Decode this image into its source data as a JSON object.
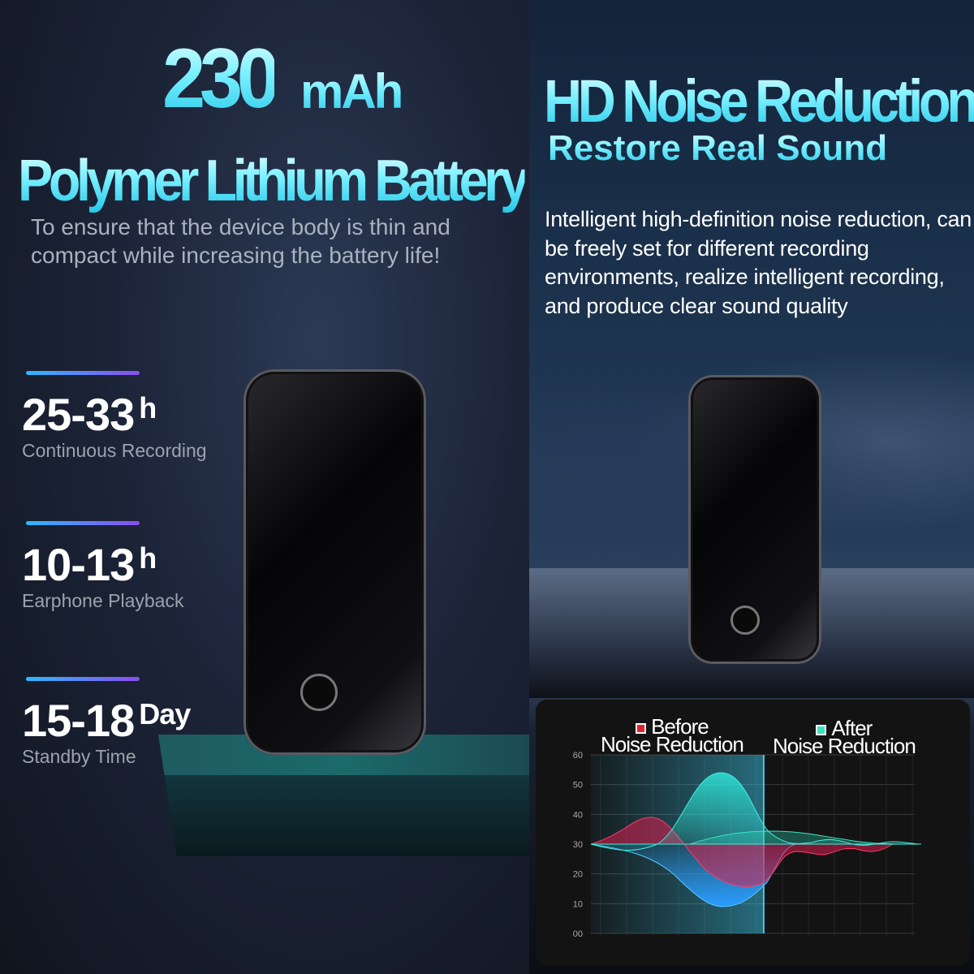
{
  "left": {
    "capacity_value": "230",
    "capacity_unit": "mAh",
    "battery_type": "Polymer Lithium Battery",
    "description": "To ensure that the device body is thin and compact while increasing the battery life!",
    "stats": [
      {
        "value": "25-33",
        "unit": "h",
        "label": "Continuous Recording"
      },
      {
        "value": "10-13",
        "unit": "h",
        "label": "Earphone Playback"
      },
      {
        "value": "15-18",
        "unit": "Day",
        "label": "Standby Time"
      }
    ]
  },
  "right": {
    "title": "HD Noise Reduction",
    "subtitle": "Restore Real Sound",
    "description": "Intelligent high-definition noise reduction, can be freely set for different recording environments, realize intelligent recording, and produce clear sound quality"
  },
  "chart": {
    "legend": [
      {
        "line1": "Before",
        "line2": "Noise Reduction",
        "color": "#e8202c"
      },
      {
        "line1": "After",
        "line2": "Noise Reduction",
        "color": "#3fe0c0"
      }
    ],
    "y_ticks": [
      "60",
      "50",
      "40",
      "30",
      "20",
      "10",
      "00"
    ]
  },
  "colors": {
    "accent": "#23c6e8",
    "bar_start": "#2fb8ff",
    "bar_end": "#8a4cf0"
  }
}
